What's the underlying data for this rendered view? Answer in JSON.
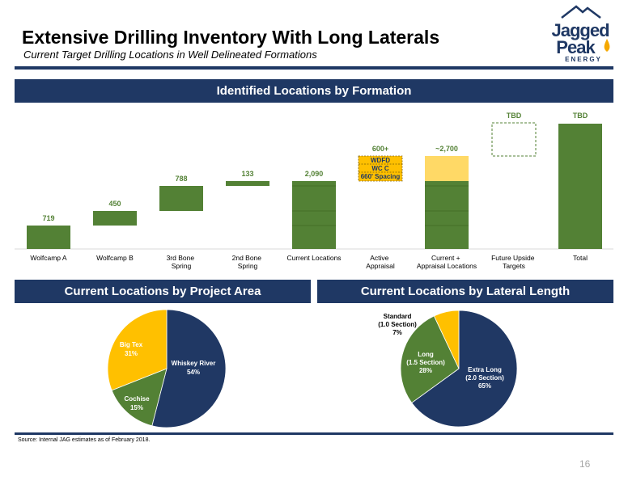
{
  "header": {
    "title": "Extensive Drilling Inventory With Long Laterals",
    "subtitle": "Current Target Drilling Locations in Well Delineated Formations"
  },
  "logo": {
    "line1": "Jagged",
    "line2": "Peak",
    "line3": "ENERGY"
  },
  "colors": {
    "navy": "#1f3864",
    "green": "#538135",
    "gold": "#ffc000",
    "light_gold": "#ffd966",
    "navy_pie": "#203864"
  },
  "sections": {
    "formation_title": "Identified Locations by Formation",
    "project_title": "Current Locations by Project Area",
    "lateral_title": "Current Locations by Lateral Length"
  },
  "chart_data": [
    {
      "type": "bar",
      "subtype": "waterfall",
      "categories": [
        "Wolfcamp A",
        "Wolfcamp B",
        "3rd Bone Spring",
        "2nd Bone Spring",
        "Current Locations",
        "Active Appraisal",
        "Current + Appraisal Locations",
        "Future Upside Targets",
        "Total"
      ],
      "values": [
        719,
        450,
        788,
        133,
        2090,
        600,
        2700,
        null,
        null
      ],
      "data_labels": [
        "719",
        "450",
        "788",
        "133",
        "2,090",
        "600+",
        "~2,700",
        "TBD",
        "TBD"
      ],
      "appraisal_box_labels": [
        "WDFD",
        "WC C",
        "660' Spacing"
      ]
    },
    {
      "type": "pie",
      "labels": [
        "Whiskey River",
        "Cochise",
        "Big Tex"
      ],
      "values": [
        54,
        15,
        31
      ],
      "slice_texts": [
        [
          "Whiskey River",
          "54%"
        ],
        [
          "Cochise",
          "15%"
        ],
        [
          "Big Tex",
          "31%"
        ]
      ]
    },
    {
      "type": "pie",
      "labels": [
        "Extra Long (2.0 Section)",
        "Long (1.5 Section)",
        "Standard (1.0 Section)"
      ],
      "values": [
        65,
        28,
        7
      ],
      "slice_texts": [
        [
          "Extra Long",
          "(2.0 Section)",
          "65%"
        ],
        [
          "Long",
          "(1.5 Section)",
          "28%"
        ],
        [
          "Standard",
          "(1.0 Section)",
          "7%"
        ]
      ]
    }
  ],
  "footer": {
    "source": "Source: Internal JAG estimates as of February 2018.",
    "page_number": "16"
  }
}
